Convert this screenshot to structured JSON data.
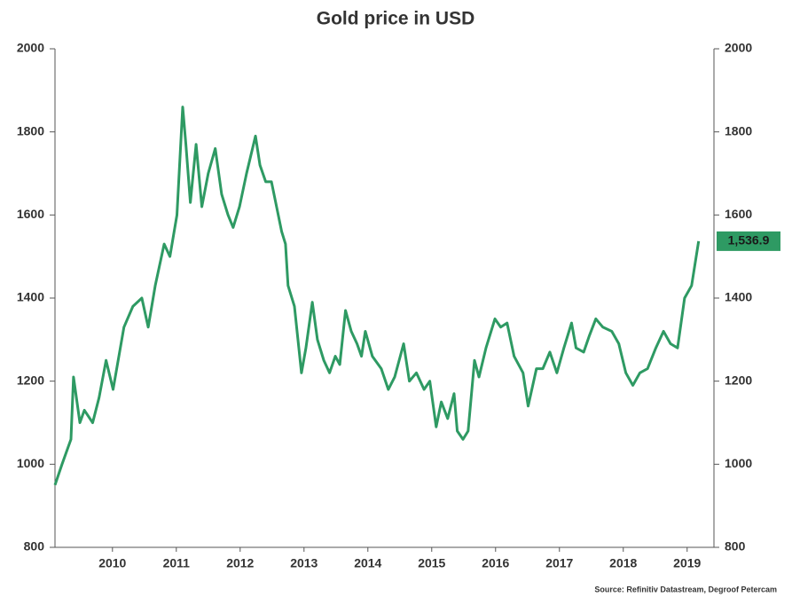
{
  "chart_data": {
    "type": "line",
    "title": "Gold price in USD",
    "source": "Source: Refinitiv Datastream, Degroof Petercam",
    "x": [
      2009.6,
      2009.71,
      2009.85,
      2009.89,
      2009.99,
      2010.06,
      2010.19,
      2010.29,
      2010.4,
      2010.51,
      2010.68,
      2010.82,
      2010.96,
      2011.06,
      2011.17,
      2011.31,
      2011.4,
      2011.51,
      2011.6,
      2011.65,
      2011.72,
      2011.81,
      2011.9,
      2012.0,
      2012.11,
      2012.21,
      2012.31,
      2012.39,
      2012.49,
      2012.6,
      2012.74,
      2012.81,
      2012.9,
      2012.99,
      2013.15,
      2013.21,
      2013.25,
      2013.35,
      2013.46,
      2013.53,
      2013.63,
      2013.71,
      2013.81,
      2013.9,
      2013.99,
      2014.06,
      2014.15,
      2014.24,
      2014.33,
      2014.4,
      2014.46,
      2014.57,
      2014.71,
      2014.82,
      2014.92,
      2015.06,
      2015.15,
      2015.26,
      2015.38,
      2015.47,
      2015.57,
      2015.65,
      2015.75,
      2015.85,
      2015.9,
      2015.99,
      2016.07,
      2016.17,
      2016.24,
      2016.35,
      2016.49,
      2016.58,
      2016.68,
      2016.79,
      2016.93,
      2017.01,
      2017.14,
      2017.24,
      2017.35,
      2017.46,
      2017.57,
      2017.69,
      2017.76,
      2017.88,
      2017.97,
      2018.07,
      2018.18,
      2018.32,
      2018.43,
      2018.54,
      2018.65,
      2018.76,
      2018.88,
      2019.01,
      2019.13,
      2019.24,
      2019.35,
      2019.46,
      2019.57,
      2019.68
    ],
    "series": [
      {
        "name": "Gold price in USD",
        "color": "#2e9a63",
        "end_label": "1,536.9",
        "values": [
          950,
          1000,
          1060,
          1210,
          1100,
          1130,
          1100,
          1160,
          1250,
          1180,
          1330,
          1380,
          1400,
          1330,
          1430,
          1530,
          1500,
          1600,
          1860,
          1770,
          1630,
          1770,
          1620,
          1700,
          1760,
          1650,
          1600,
          1570,
          1620,
          1700,
          1790,
          1720,
          1680,
          1680,
          1560,
          1530,
          1430,
          1380,
          1220,
          1280,
          1390,
          1300,
          1250,
          1220,
          1260,
          1240,
          1370,
          1320,
          1290,
          1260,
          1320,
          1260,
          1230,
          1180,
          1210,
          1290,
          1200,
          1220,
          1180,
          1200,
          1090,
          1150,
          1110,
          1170,
          1080,
          1060,
          1080,
          1250,
          1210,
          1280,
          1350,
          1330,
          1340,
          1260,
          1220,
          1140,
          1230,
          1230,
          1270,
          1220,
          1280,
          1340,
          1280,
          1270,
          1310,
          1350,
          1330,
          1320,
          1290,
          1220,
          1190,
          1220,
          1230,
          1280,
          1320,
          1290,
          1280,
          1400,
          1430,
          1536.9
        ]
      }
    ],
    "xlim": [
      2009.6,
      2019.92
    ],
    "xticks": [
      {
        "value": 2010.5,
        "label": "2010"
      },
      {
        "value": 2011.5,
        "label": "2011"
      },
      {
        "value": 2012.5,
        "label": "2012"
      },
      {
        "value": 2013.5,
        "label": "2013"
      },
      {
        "value": 2014.5,
        "label": "2014"
      },
      {
        "value": 2015.5,
        "label": "2015"
      },
      {
        "value": 2016.5,
        "label": "2016"
      },
      {
        "value": 2017.5,
        "label": "2017"
      },
      {
        "value": 2018.5,
        "label": "2018"
      },
      {
        "value": 2019.5,
        "label": "2019"
      }
    ],
    "ylim": [
      800,
      2000
    ],
    "yticks": [
      800,
      1000,
      1200,
      1400,
      1600,
      1800,
      2000
    ],
    "y2lim": [
      800,
      2000
    ],
    "y2ticks": [
      800,
      1000,
      1200,
      1400,
      1600,
      1800,
      2000
    ]
  }
}
